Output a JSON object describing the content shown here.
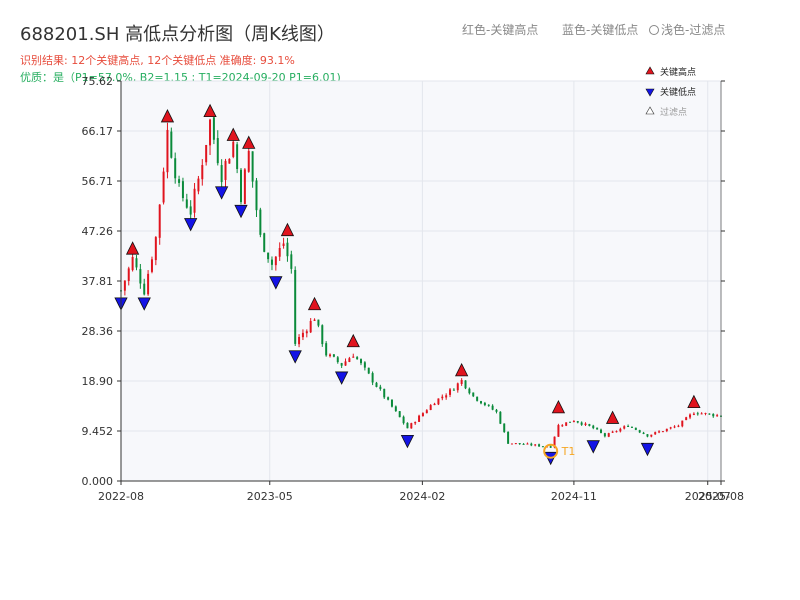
{
  "header": {
    "title": "688201.SH 高低点分析图（周K线图）",
    "subtitle": "识别结果: 12个关键高点, 12个关键低点   准确度: 93.1%",
    "quality": "优质：是（P1=57.0%, B2=1.15 ; T1=2024-09-20 P1=6.01)"
  },
  "top_legend": {
    "red": "红色-关键高点",
    "blue": "蓝色-关键低点",
    "light": "浅色-过滤点"
  },
  "colors": {
    "up": "#e0141e",
    "down": "#0a8a3a",
    "high_marker": "#e0141e",
    "low_marker": "#1414e6",
    "t1": "#f5a623",
    "plot_bg": "#f7f8fb",
    "grid": "#e3e6ec"
  },
  "chart_data": {
    "type": "candlestick",
    "ylim": [
      0.0,
      75.62
    ],
    "yticks": [
      "0.000",
      "9.452",
      "18.90",
      "28.36",
      "37.81",
      "47.26",
      "56.71",
      "66.17",
      "75.62"
    ],
    "xticks": [
      "2022-08",
      "2023-05",
      "2024-02",
      "2024-11",
      "2025-08",
      "2025-07"
    ],
    "grid": true,
    "legend_position": "top-right",
    "legend": [
      "关键高点",
      "关键低点",
      "过滤点"
    ],
    "annotation_t1": "T1",
    "x_range": [
      "2022-08-05",
      "2025-07-25"
    ],
    "close_path": [
      [
        "2022-08-05",
        36
      ],
      [
        "2022-08-26",
        42
      ],
      [
        "2022-09-16",
        36
      ],
      [
        "2022-10-07",
        46
      ],
      [
        "2022-10-28",
        66
      ],
      [
        "2022-11-18",
        55
      ],
      [
        "2022-12-09",
        51
      ],
      [
        "2022-12-23",
        57
      ],
      [
        "2023-01-13",
        68
      ],
      [
        "2023-02-03",
        58
      ],
      [
        "2023-02-24",
        64
      ],
      [
        "2023-03-10",
        54
      ],
      [
        "2023-03-24",
        62
      ],
      [
        "2023-04-14",
        46
      ],
      [
        "2023-05-05",
        41
      ],
      [
        "2023-05-26",
        45
      ],
      [
        "2023-06-09",
        40
      ],
      [
        "2023-06-16",
        26
      ],
      [
        "2023-07-21",
        31
      ],
      [
        "2023-08-11",
        24
      ],
      [
        "2023-09-08",
        22
      ],
      [
        "2023-09-29",
        24
      ],
      [
        "2023-11-10",
        18
      ],
      [
        "2024-01-05",
        10
      ],
      [
        "2024-02-23",
        15
      ],
      [
        "2024-03-22",
        17
      ],
      [
        "2024-04-12",
        19
      ],
      [
        "2024-05-03",
        16
      ],
      [
        "2024-06-14",
        13
      ],
      [
        "2024-07-05",
        7.2
      ],
      [
        "2024-09-20",
        6.5
      ],
      [
        "2024-10-04",
        10.5
      ],
      [
        "2024-11-01",
        11.5
      ],
      [
        "2024-12-06",
        10
      ],
      [
        "2024-12-27",
        8.5
      ],
      [
        "2025-02-07",
        10.5
      ],
      [
        "2025-03-14",
        8.6
      ],
      [
        "2025-05-09",
        10.5
      ],
      [
        "2025-06-06",
        13
      ],
      [
        "2025-07-25",
        12.3
      ]
    ],
    "highs": [
      {
        "date": "2022-08-26",
        "value": 42.5
      },
      {
        "date": "2022-10-28",
        "value": 67.5
      },
      {
        "date": "2023-01-13",
        "value": 68.5
      },
      {
        "date": "2023-02-24",
        "value": 64.0
      },
      {
        "date": "2023-03-24",
        "value": 62.5
      },
      {
        "date": "2023-06-02",
        "value": 46.0
      },
      {
        "date": "2023-07-21",
        "value": 32.0
      },
      {
        "date": "2023-09-29",
        "value": 25.0
      },
      {
        "date": "2024-04-12",
        "value": 19.5
      },
      {
        "date": "2024-10-04",
        "value": 12.5
      },
      {
        "date": "2025-01-10",
        "value": 10.5
      },
      {
        "date": "2025-06-06",
        "value": 13.5
      }
    ],
    "lows": [
      {
        "date": "2022-08-05",
        "value": 35.0
      },
      {
        "date": "2022-09-16",
        "value": 35.0
      },
      {
        "date": "2022-12-09",
        "value": 50.0
      },
      {
        "date": "2023-02-03",
        "value": 56.0
      },
      {
        "date": "2023-03-10",
        "value": 52.5
      },
      {
        "date": "2023-05-12",
        "value": 39.0
      },
      {
        "date": "2023-06-16",
        "value": 25.0
      },
      {
        "date": "2023-09-08",
        "value": 21.0
      },
      {
        "date": "2024-01-05",
        "value": 9.0
      },
      {
        "date": "2024-09-20",
        "value": 5.8
      },
      {
        "date": "2024-12-06",
        "value": 8.0
      },
      {
        "date": "2025-03-14",
        "value": 7.5
      }
    ],
    "t1": {
      "date": "2024-09-20",
      "value": 6.01
    }
  }
}
